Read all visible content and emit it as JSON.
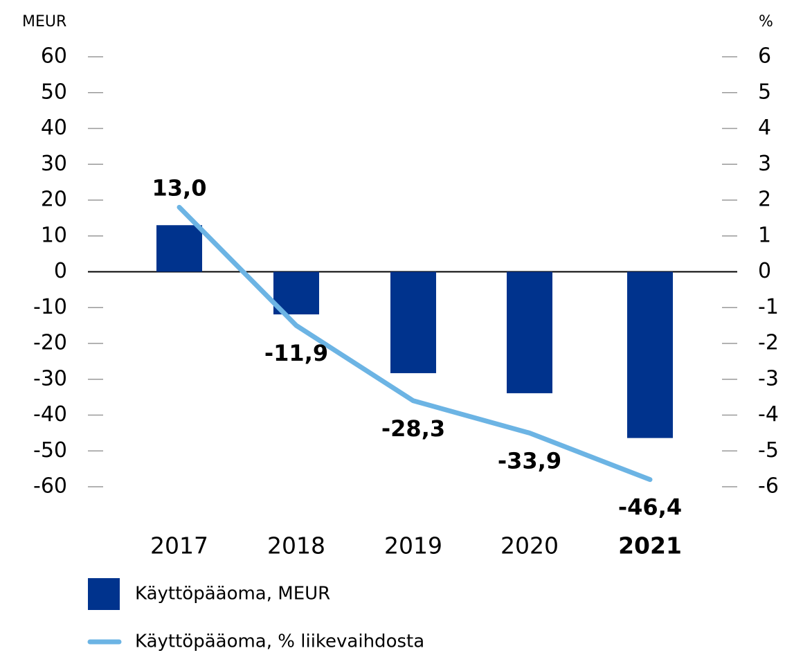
{
  "chart_data": {
    "type": "bar_line",
    "y_label": "MEUR",
    "y2_label": "%",
    "categories": [
      "2017",
      "2018",
      "2019",
      "2020",
      "2021"
    ],
    "series": [
      {
        "name": "Käyttöpääoma, MEUR",
        "color": "#00338d",
        "type": "bar",
        "values": [
          13.0,
          -11.9,
          -28.3,
          -33.9,
          -46.4
        ],
        "value_labels": [
          "13,0",
          "-11,9",
          "-28,3",
          "-33,9",
          "-46,4"
        ]
      },
      {
        "name": "Käyttöpääoma, % liikevaihdosta",
        "color": "#6cb4e4",
        "type": "line",
        "axis": "y2",
        "values": [
          1.8,
          -1.5,
          -3.6,
          -4.5,
          -5.8
        ]
      }
    ],
    "ylim": [
      -60,
      60
    ],
    "yticks": [
      60,
      50,
      40,
      30,
      20,
      10,
      0,
      -10,
      -20,
      -30,
      -40,
      -50,
      -60
    ],
    "y2lim": [
      -6,
      6
    ],
    "y2ticks": [
      6,
      5,
      4,
      3,
      2,
      1,
      0,
      -1,
      -2,
      -3,
      -4,
      -5,
      -6
    ]
  }
}
